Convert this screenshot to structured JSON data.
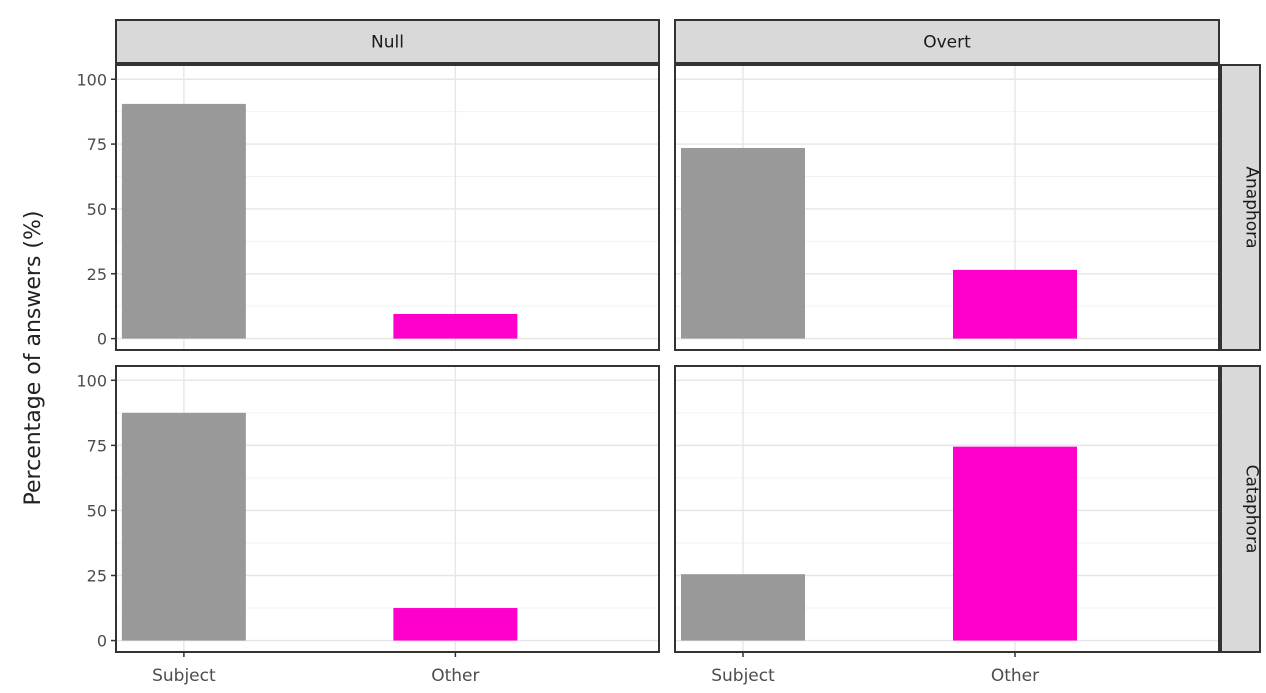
{
  "chart_data": {
    "type": "bar",
    "ylabel": "Percentage of answers (%)",
    "xlabel": "",
    "ylim": [
      0,
      100
    ],
    "yticks": [
      0,
      25,
      50,
      75,
      100
    ],
    "categories": [
      "Subject",
      "Other"
    ],
    "colors": {
      "Subject": "#999999",
      "Other": "#ff00cc"
    },
    "grid": true,
    "col_facets": [
      "Null",
      "Overt"
    ],
    "row_facets": [
      "Anaphora",
      "Cataphora"
    ],
    "panels": [
      {
        "col": "Null",
        "row": "Anaphora",
        "values": [
          90.5,
          9.5
        ]
      },
      {
        "col": "Overt",
        "row": "Anaphora",
        "values": [
          73.5,
          26.5
        ]
      },
      {
        "col": "Null",
        "row": "Cataphora",
        "values": [
          87.5,
          12.5
        ]
      },
      {
        "col": "Overt",
        "row": "Cataphora",
        "values": [
          25.5,
          74.5
        ]
      }
    ]
  }
}
